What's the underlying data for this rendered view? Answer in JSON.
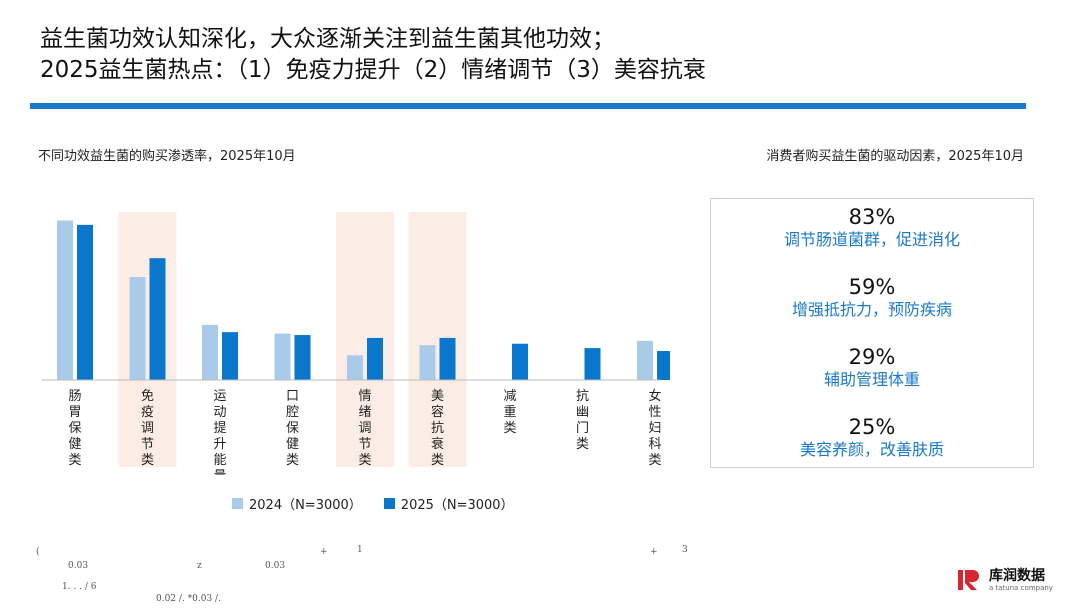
{
  "title": {
    "line1": "益生菌功效认知深化，大众逐渐关注到益生菌其他功效；",
    "line2": "2025益生菌热点：（1）免疫力提升（2）情绪调节（3）美容抗衰"
  },
  "colors": {
    "accent": "#1a7ac7",
    "series_2024": "#a9cbe9",
    "series_2025": "#0a76cc",
    "highlight": "#fbece6"
  },
  "chart_data": {
    "type": "bar",
    "title": "不同功效益生菌的购买渗透率，2025年10月",
    "categories": [
      "肠胃保健类",
      "免疫调节类",
      "运动提升能量类",
      "口腔保健类",
      "情绪调节类",
      "美容抗衰类",
      "减重类",
      "抗幽门类",
      "女性妇科类"
    ],
    "highlighted_categories": [
      "免疫调节类",
      "情绪调节类",
      "美容抗衰类"
    ],
    "series": [
      {
        "name": "2024（N=3000）",
        "values": [
          0.55,
          0.355,
          0.19,
          0.16,
          0.085,
          0.12,
          null,
          null,
          0.135
        ]
      },
      {
        "name": "2025（N=3000）",
        "values": [
          0.535,
          0.42,
          0.165,
          0.155,
          0.145,
          0.145,
          0.125,
          0.11,
          0.1
        ]
      }
    ],
    "legend": "bottom",
    "grid": false
  },
  "drivers": {
    "title": "消费者购买益生菌的驱动因素，2025年10月",
    "items": [
      {
        "pct": "83%",
        "label": "调节肠道菌群，促进消化"
      },
      {
        "pct": "59%",
        "label": "增强抵抗力，预防疾病"
      },
      {
        "pct": "29%",
        "label": "辅助管理体重"
      },
      {
        "pct": "25%",
        "label": "美容养颜，改善肤质"
      }
    ]
  },
  "footnotes": {
    "a": "(",
    "b": "0.03",
    "c": "z",
    "d": "0.03",
    "e": "+",
    "f": "1",
    "g": "+",
    "h": "3",
    "i": "1. . . / 6",
    "j": "0.02 /. *0.03 /."
  },
  "logo": {
    "name": "库润数据",
    "sub": "a tatuna company"
  }
}
